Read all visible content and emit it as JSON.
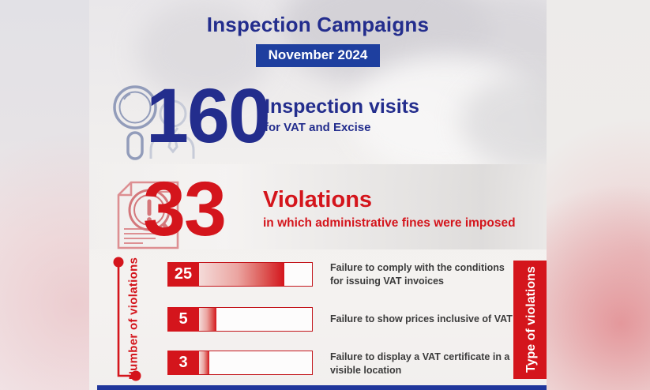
{
  "header": {
    "title": "Inspection Campaigns",
    "badge": "November 2024"
  },
  "visits_section": {
    "icon": "inspector-magnifier-icon",
    "value": "160",
    "title": "Inspection visits",
    "subtitle": "for VAT and Excise"
  },
  "violations_section": {
    "icon": "document-alert-magnifier-icon",
    "value": "33",
    "title": "Violations",
    "subtitle": "in which administrative fines were imposed"
  },
  "chart_data": {
    "type": "bar",
    "orientation": "horizontal",
    "title": "Violations in which administrative fines were imposed",
    "ylabel": "Number of violations",
    "xlabel": "Type of violations",
    "categories": [
      "Failure to comply with the conditions for issuing VAT invoices",
      "Failure to show prices inclusive of VAT",
      "Failure to display a VAT certificate in a visible location"
    ],
    "values": [
      25,
      5,
      3
    ],
    "xlim": [
      0,
      33
    ],
    "grid": false,
    "legend": false
  },
  "colors": {
    "navy": "#232d8d",
    "badge_blue": "#1e3f9f",
    "red": "#d4151c",
    "label_text": "#3b3b3b"
  }
}
